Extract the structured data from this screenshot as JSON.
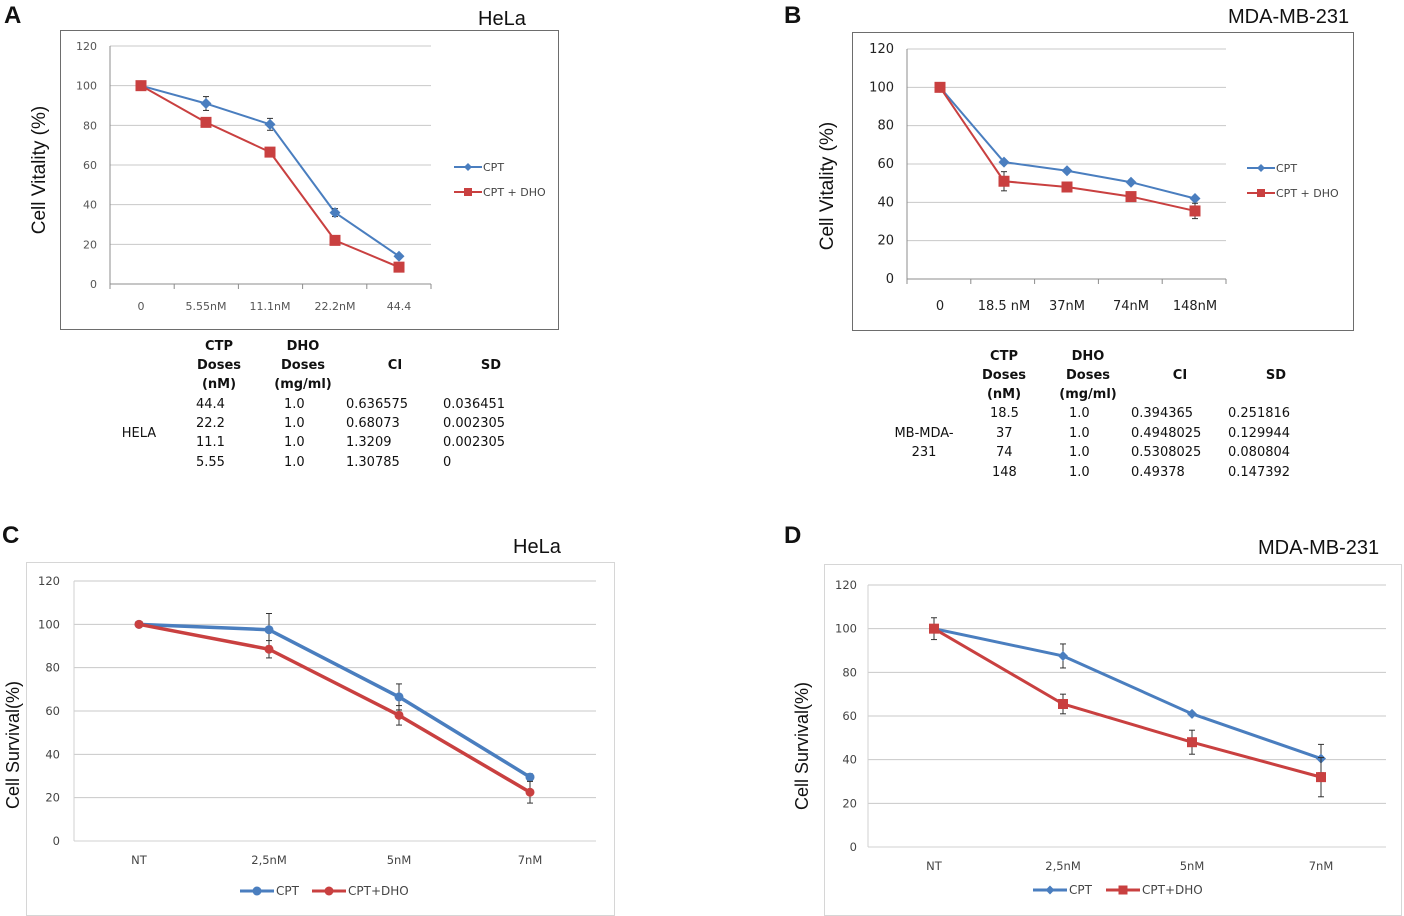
{
  "panels": [
    {
      "letter": "A",
      "chart_title": "HeLa",
      "y_label": "Cell Vitality (%)",
      "table": {
        "headers": [
          [
            "CTP",
            "Doses",
            "(nM)"
          ],
          [
            "DHO",
            "Doses",
            "(mg/ml)"
          ],
          [
            "CI"
          ],
          [
            "SD"
          ]
        ],
        "row_label": [
          "HELA"
        ],
        "rows": [
          [
            "44.4",
            "1.0",
            "0.636575",
            "0.036451"
          ],
          [
            "22.2",
            "1.0",
            "0.68073",
            "0.002305"
          ],
          [
            "11.1",
            "1.0",
            "1.3209",
            "0.002305"
          ],
          [
            "5.55",
            "1.0",
            "1.30785",
            "0"
          ]
        ]
      }
    },
    {
      "letter": "B",
      "chart_title": "MDA-MB-231",
      "y_label": "Cell Vitality (%)",
      "table": {
        "headers": [
          [
            "CTP",
            "Doses",
            "(nM)"
          ],
          [
            "DHO",
            "Doses",
            "(mg/ml)"
          ],
          [
            "CI"
          ],
          [
            "SD"
          ]
        ],
        "row_label": [
          "MB-MDA-",
          "231"
        ],
        "rows": [
          [
            "18.5",
            "1.0",
            "0.394365",
            "0.251816"
          ],
          [
            "37",
            "1.0",
            "0.4948025",
            "0.129944"
          ],
          [
            "74",
            "1.0",
            "0.5308025",
            "0.080804"
          ],
          [
            "148",
            "1.0",
            "0.49378",
            "0.147392"
          ]
        ]
      }
    },
    {
      "letter": "C",
      "chart_title": "HeLa",
      "y_label": "Cell Survival(%)"
    },
    {
      "letter": "D",
      "chart_title": "MDA-MB-231",
      "y_label": "Cell Survival(%)"
    }
  ],
  "colors": {
    "blue": "#4a7ebf",
    "red": "#c94040",
    "grid": "#c8c8c8",
    "axis": "#7f7f7f",
    "errbar": "#333333"
  },
  "chart_data": [
    {
      "type": "line",
      "panel": "A",
      "title": "HeLa",
      "ylabel": "Cell Vitality (%)",
      "xlabel": "",
      "categories": [
        "0",
        "5.55nM",
        "11.1nM",
        "22.2nM",
        "44.4"
      ],
      "ylim": [
        0,
        120
      ],
      "yticks": [
        0,
        20,
        40,
        60,
        80,
        100,
        120
      ],
      "legend_position": "right",
      "series": [
        {
          "name": "CPT",
          "color": "#4a7ebf",
          "marker": "diamond",
          "values": [
            100,
            91,
            80.5,
            36,
            14
          ],
          "errors": [
            0,
            3.5,
            3,
            2,
            0
          ]
        },
        {
          "name": "CPT + DHO",
          "color": "#c94040",
          "marker": "square",
          "values": [
            100,
            81.5,
            66.5,
            22,
            8.5
          ],
          "errors": [
            0,
            0,
            0,
            0,
            0
          ]
        }
      ]
    },
    {
      "type": "line",
      "panel": "B",
      "title": "MDA-MB-231",
      "ylabel": "Cell Vitality (%)",
      "xlabel": "",
      "categories": [
        "0",
        "18.5 nM",
        "37nM",
        "74nM",
        "148nM"
      ],
      "ylim": [
        0,
        120
      ],
      "yticks": [
        0,
        20,
        40,
        60,
        80,
        100,
        120
      ],
      "legend_position": "right",
      "series": [
        {
          "name": "CPT",
          "color": "#4a7ebf",
          "marker": "diamond",
          "values": [
            100,
            61,
            56.5,
            50.5,
            42
          ],
          "errors": [
            0,
            0,
            0,
            0,
            0
          ]
        },
        {
          "name": "CPT + DHO",
          "color": "#c94040",
          "marker": "square",
          "values": [
            100,
            51,
            48,
            43,
            35.5
          ],
          "errors": [
            0,
            5,
            0,
            0,
            4
          ]
        }
      ]
    },
    {
      "type": "line",
      "panel": "C",
      "title": "HeLa",
      "ylabel": "Cell Survival(%)",
      "xlabel": "",
      "categories": [
        "NT",
        "2,5nM",
        "5nM",
        "7nM"
      ],
      "ylim": [
        0,
        120
      ],
      "yticks": [
        0,
        20,
        40,
        60,
        80,
        100,
        120
      ],
      "legend_position": "bottom",
      "series": [
        {
          "name": "CPT",
          "color": "#4a7ebf",
          "marker": "circle",
          "values": [
            100,
            97.5,
            66.5,
            29.5
          ],
          "errors": [
            0,
            7.5,
            6,
            1.5
          ]
        },
        {
          "name": "CPT+DHO",
          "color": "#c94040",
          "marker": "circle",
          "values": [
            100,
            88.5,
            58,
            22.5
          ],
          "errors": [
            0,
            4,
            4.5,
            5
          ]
        }
      ]
    },
    {
      "type": "line",
      "panel": "D",
      "title": "MDA-MB-231",
      "ylabel": "Cell Survival(%)",
      "xlabel": "",
      "categories": [
        "NT",
        "2,5nM",
        "5nM",
        "7nM"
      ],
      "ylim": [
        0,
        120
      ],
      "yticks": [
        0,
        20,
        40,
        60,
        80,
        100,
        120
      ],
      "legend_position": "bottom",
      "series": [
        {
          "name": "CPT",
          "color": "#4a7ebf",
          "marker": "diamond",
          "values": [
            100,
            87.5,
            61,
            40.5
          ],
          "errors": [
            5,
            5.5,
            0,
            6.5
          ]
        },
        {
          "name": "CPT+DHO",
          "color": "#c94040",
          "marker": "square",
          "values": [
            100,
            65.5,
            48,
            32
          ],
          "errors": [
            0,
            4.5,
            5.5,
            9
          ]
        }
      ]
    }
  ]
}
